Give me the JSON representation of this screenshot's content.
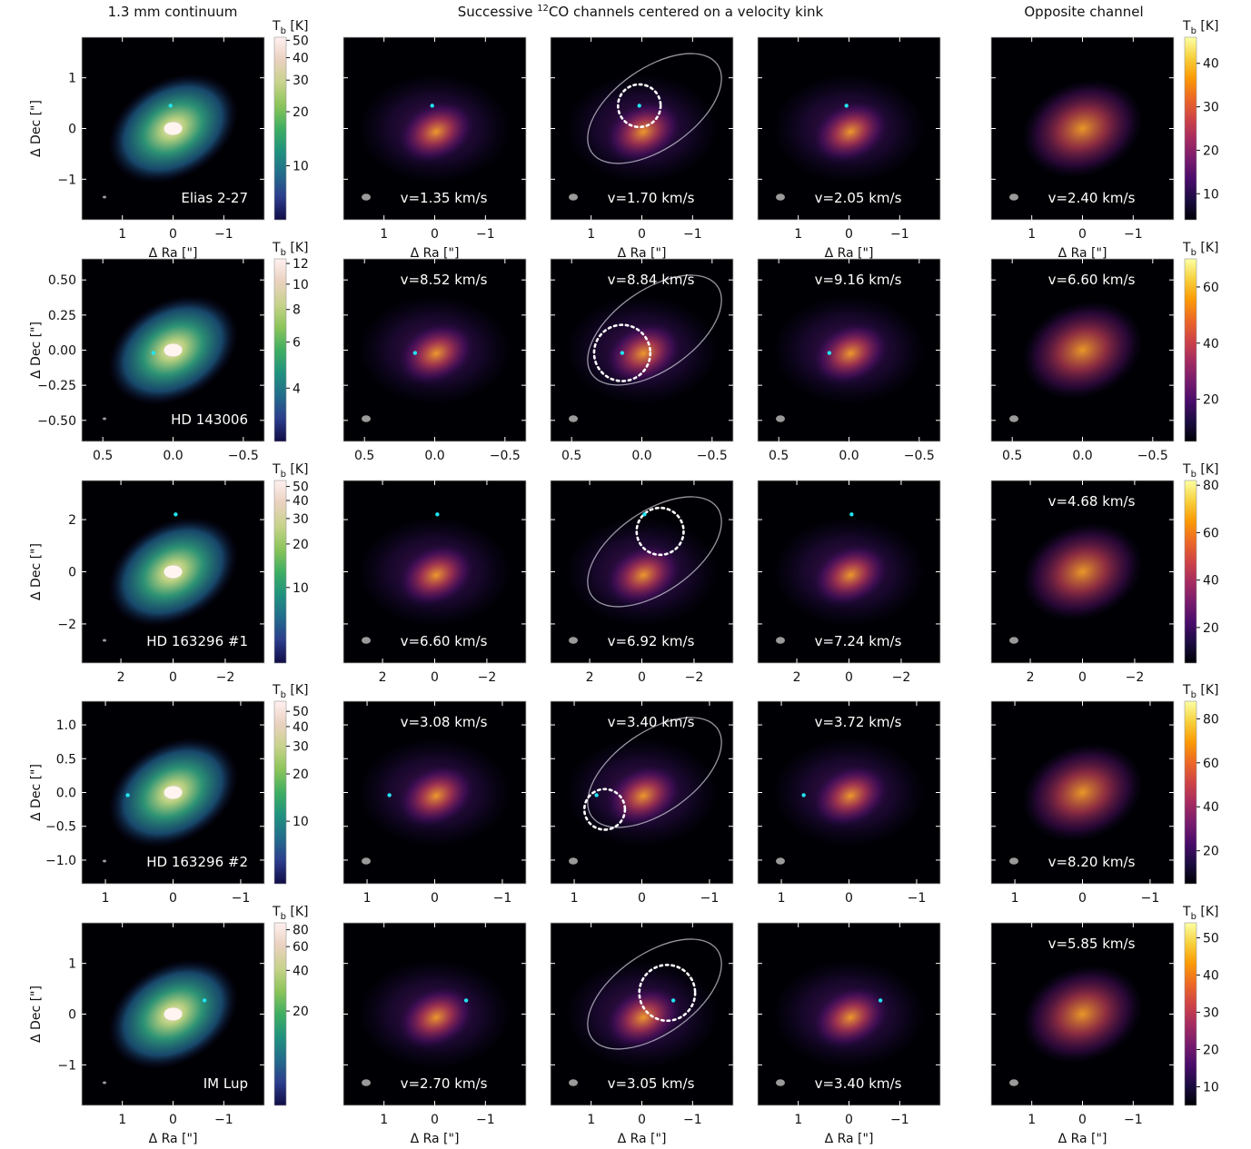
{
  "column_titles": {
    "continuum": "1.3 mm continuum",
    "channels_prefix": "Successive ",
    "channels_sup": "12",
    "channels_suffix": "CO channels centered on a velocity kink",
    "opposite": "Opposite channel"
  },
  "colors": {
    "planet_marker": "#22e4f0",
    "beam": "#9a9a9a",
    "model_curve": "#c8c8d4",
    "kink_circle": "#ffffff",
    "panel_background": "#000004",
    "cmap_continuum": [
      "#100c45",
      "#2c3d8c",
      "#236c8c",
      "#20927e",
      "#3fae62",
      "#8bc45a",
      "#c7d38a",
      "#ead1bf",
      "#fff0f0"
    ],
    "cmap_channel": [
      "#000004",
      "#1b0c41",
      "#4a0c6b",
      "#781c6d",
      "#a52c60",
      "#cf4446",
      "#ed6925",
      "#fb9b06",
      "#f7d13d",
      "#fcffa4"
    ]
  },
  "chart_data": [
    {
      "type": "heatmap",
      "target": "Elias 2-27",
      "colorbar_label": "T",
      "colorbar_sub": "b",
      "colorbar_unit": " [K]",
      "ylabel": "Δ Dec [\"]",
      "xlabel": "Δ Ra [\"]",
      "xlim": [
        1.8,
        -1.8
      ],
      "ylim": [
        -1.8,
        1.8
      ],
      "xticks": [
        "1",
        "0",
        "−1"
      ],
      "yticks": [
        "1",
        "0",
        "−1"
      ],
      "continuum": {
        "label": "Elias 2-27",
        "cbar_min": 5,
        "cbar_max": 52,
        "cbar_scale": "log",
        "cbar_ticks": [
          "10",
          "20",
          "30",
          "40",
          "50"
        ]
      },
      "channels": [
        "v=1.35 km/s",
        "v=1.70 km/s",
        "v=2.05 km/s"
      ],
      "opposite": {
        "velocity": "v=2.40 km/s",
        "cbar_min": 4,
        "cbar_max": 46,
        "cbar_ticks": [
          "10",
          "20",
          "30",
          "40"
        ]
      },
      "planet": [
        0.05,
        0.45
      ],
      "kink_circle": {
        "center": [
          0.05,
          0.45
        ],
        "radius": 0.42
      },
      "label_position": "bottom"
    },
    {
      "type": "heatmap",
      "target": "HD 143006",
      "colorbar_label": "T",
      "colorbar_sub": "b",
      "colorbar_unit": " [K]",
      "ylabel": "Δ Dec [\"]",
      "xlim": [
        0.65,
        -0.65
      ],
      "ylim": [
        -0.65,
        0.65
      ],
      "xticks": [
        "0.5",
        "0.0",
        "−0.5"
      ],
      "yticks": [
        "0.50",
        "0.25",
        "0.00",
        "−0.25",
        "−0.50"
      ],
      "continuum": {
        "label": "HD 143006",
        "cbar_min": 2.5,
        "cbar_max": 12.5,
        "cbar_scale": "log",
        "cbar_ticks": [
          "4",
          "6",
          "8",
          "10",
          "12"
        ]
      },
      "channels": [
        "v=8.52 km/s",
        "v=8.84 km/s",
        "v=9.16 km/s"
      ],
      "opposite": {
        "velocity": "v=6.60 km/s",
        "cbar_min": 5,
        "cbar_max": 70,
        "cbar_ticks": [
          "20",
          "40",
          "60"
        ]
      },
      "planet": [
        0.14,
        -0.02
      ],
      "kink_circle": {
        "center": [
          0.14,
          -0.02
        ],
        "radius": 0.2
      },
      "label_position": "top"
    },
    {
      "type": "heatmap",
      "target": "HD 163296 #1",
      "colorbar_label": "T",
      "colorbar_sub": "b",
      "colorbar_unit": " [K]",
      "ylabel": "Δ Dec [\"]",
      "xlim": [
        3.5,
        -3.5
      ],
      "ylim": [
        -3.5,
        3.5
      ],
      "xticks": [
        "2",
        "0",
        "−2"
      ],
      "yticks": [
        "2",
        "0",
        "−2"
      ],
      "continuum": {
        "label": "HD 163296 #1",
        "cbar_min": 3,
        "cbar_max": 55,
        "cbar_scale": "log",
        "cbar_ticks": [
          "10",
          "20",
          "30",
          "40",
          "50"
        ]
      },
      "channels": [
        "v=6.60 km/s",
        "v=6.92 km/s",
        "v=7.24 km/s"
      ],
      "opposite": {
        "velocity": "v=4.68 km/s",
        "cbar_min": 5,
        "cbar_max": 82,
        "cbar_ticks": [
          "20",
          "40",
          "60",
          "80"
        ]
      },
      "planet": [
        -0.1,
        2.2
      ],
      "kink_circle": {
        "center": [
          -0.7,
          1.55
        ],
        "radius": 0.9
      },
      "label_position": "bottom"
    },
    {
      "type": "heatmap",
      "target": "HD 163296 #2",
      "colorbar_label": "T",
      "colorbar_sub": "b",
      "colorbar_unit": " [K]",
      "ylabel": "Δ Dec [\"]",
      "xlim": [
        1.35,
        -1.35
      ],
      "ylim": [
        -1.35,
        1.35
      ],
      "xticks": [
        "1",
        "0",
        "−1"
      ],
      "yticks": [
        "1.0",
        "0.5",
        "0.0",
        "−0.5",
        "−1.0"
      ],
      "continuum": {
        "label": "HD 163296 #2",
        "cbar_min": 4,
        "cbar_max": 58,
        "cbar_scale": "log",
        "cbar_ticks": [
          "10",
          "20",
          "30",
          "40",
          "50"
        ]
      },
      "channels": [
        "v=3.08 km/s",
        "v=3.40 km/s",
        "v=3.72 km/s"
      ],
      "opposite": {
        "velocity": "v=8.20 km/s",
        "cbar_min": 5,
        "cbar_max": 88,
        "cbar_ticks": [
          "20",
          "40",
          "60",
          "80"
        ]
      },
      "planet": [
        0.67,
        -0.04
      ],
      "kink_circle": {
        "center": [
          0.55,
          -0.25
        ],
        "radius": 0.3
      },
      "label_position": "top"
    },
    {
      "type": "heatmap",
      "target": "IM Lup",
      "colorbar_label": "T",
      "colorbar_sub": "b",
      "colorbar_unit": " [K]",
      "ylabel": "Δ Dec [\"]",
      "xlabel": "Δ Ra [\"]",
      "xlim": [
        1.8,
        -1.8
      ],
      "ylim": [
        -1.8,
        1.8
      ],
      "xticks": [
        "1",
        "0",
        "−1"
      ],
      "yticks": [
        "1",
        "0",
        "−1"
      ],
      "continuum": {
        "label": "IM Lup",
        "cbar_min": 4,
        "cbar_max": 90,
        "cbar_scale": "log",
        "cbar_ticks": [
          "20",
          "40",
          "60",
          "80"
        ]
      },
      "channels": [
        "v=2.70 km/s",
        "v=3.05 km/s",
        "v=3.40 km/s"
      ],
      "opposite": {
        "velocity": "v=5.85 km/s",
        "cbar_min": 5,
        "cbar_max": 54,
        "cbar_ticks": [
          "10",
          "20",
          "30",
          "40",
          "50"
        ]
      },
      "planet": [
        -0.62,
        0.27
      ],
      "kink_circle": {
        "center": [
          -0.5,
          0.42
        ],
        "radius": 0.55
      },
      "label_position": "bottom"
    }
  ]
}
